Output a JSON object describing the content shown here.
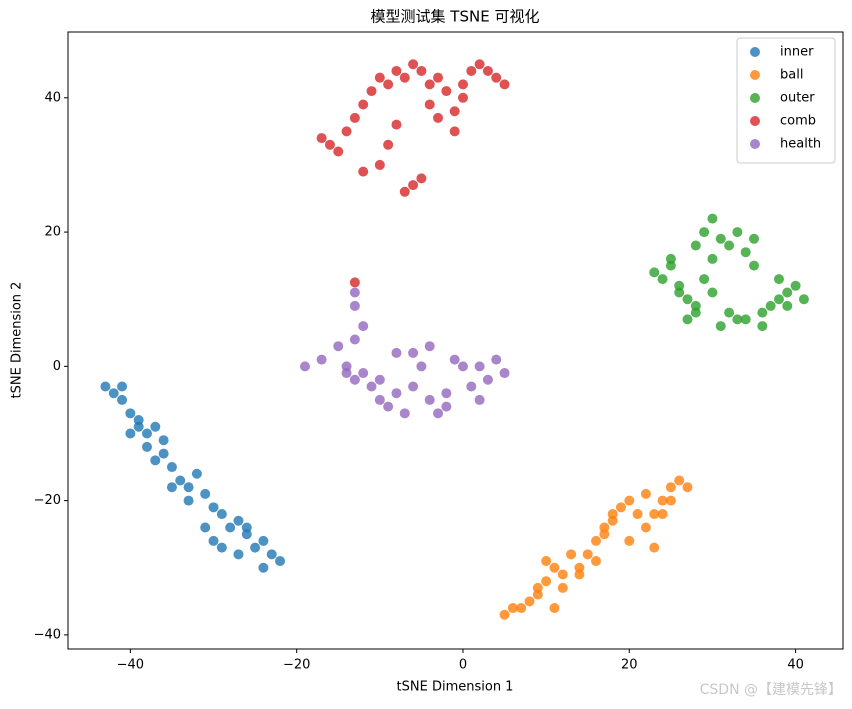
{
  "chart_data": {
    "type": "scatter",
    "title": "模型测试集 TSNE 可视化",
    "x_label": "tSNE Dimension 1",
    "y_label": "tSNE Dimension 2",
    "watermark": "CSDN @【建模先锋】",
    "xlim": [
      -47.5,
      45.7
    ],
    "ylim": [
      -42.1,
      49.8
    ],
    "xticks": [
      {
        "value": -40,
        "label": "−40"
      },
      {
        "value": -20,
        "label": "−20"
      },
      0,
      20,
      40
    ],
    "yticks": [
      {
        "value": -40,
        "label": "−40"
      },
      {
        "value": -20,
        "label": "−20"
      },
      0,
      20,
      40
    ],
    "legend": "upper right",
    "series": [
      {
        "name": "inner",
        "color": "#1f77b4",
        "x": [
          -43,
          -42,
          -41,
          -40,
          -41,
          -39,
          -38,
          -37,
          -38,
          -36,
          -35,
          -36,
          -34,
          -33,
          -32,
          -33,
          -31,
          -30,
          -31,
          -29,
          -28,
          -29,
          -27,
          -26,
          -25,
          -26,
          -24,
          -23,
          -22,
          -24,
          -27,
          -30,
          -35,
          -39,
          -40,
          -37
        ],
        "y": [
          -3,
          -4,
          -5,
          -7,
          -3,
          -9,
          -10,
          -9,
          -12,
          -13,
          -15,
          -11,
          -17,
          -18,
          -16,
          -20,
          -19,
          -21,
          -24,
          -22,
          -24,
          -27,
          -23,
          -25,
          -27,
          -24,
          -26,
          -28,
          -29,
          -30,
          -28,
          -26,
          -18,
          -8,
          -10,
          -14
        ]
      },
      {
        "name": "ball",
        "color": "#ff7f0e",
        "x": [
          5,
          6,
          7,
          8,
          9,
          10,
          11,
          12,
          9,
          10,
          13,
          14,
          15,
          16,
          17,
          18,
          19,
          20,
          17,
          16,
          21,
          22,
          23,
          24,
          25,
          26,
          27,
          24,
          23,
          25,
          12,
          14,
          20,
          22,
          18,
          11
        ],
        "y": [
          -37,
          -36,
          -36,
          -35,
          -34,
          -32,
          -30,
          -31,
          -33,
          -29,
          -28,
          -30,
          -28,
          -26,
          -25,
          -23,
          -21,
          -20,
          -24,
          -29,
          -22,
          -24,
          -22,
          -20,
          -18,
          -17,
          -18,
          -22,
          -27,
          -20,
          -33,
          -31,
          -26,
          -19,
          -22,
          -36
        ]
      },
      {
        "name": "outer",
        "color": "#2ca02c",
        "x": [
          23,
          24,
          25,
          26,
          27,
          28,
          29,
          30,
          31,
          32,
          33,
          34,
          35,
          30,
          29,
          28,
          27,
          26,
          31,
          33,
          36,
          37,
          38,
          39,
          40,
          41,
          38,
          36,
          34,
          32,
          30,
          28,
          25,
          39,
          35
        ],
        "y": [
          14,
          13,
          15,
          12,
          10,
          8,
          20,
          22,
          19,
          18,
          20,
          17,
          15,
          16,
          13,
          9,
          7,
          11,
          6,
          7,
          8,
          9,
          10,
          11,
          12,
          10,
          13,
          6,
          7,
          8,
          11,
          18,
          16,
          9,
          19
        ]
      },
      {
        "name": "comb",
        "color": "#d62728",
        "x": [
          -17,
          -16,
          -15,
          -14,
          -13,
          -12,
          -11,
          -10,
          -9,
          -8,
          -7,
          -6,
          -5,
          -4,
          -3,
          -2,
          -1,
          0,
          1,
          2,
          3,
          4,
          5,
          -6,
          -7,
          -5,
          -10,
          -12,
          -9,
          -3,
          -1,
          -13,
          -8,
          -4,
          0
        ],
        "y": [
          34,
          33,
          32,
          35,
          37,
          39,
          41,
          43,
          42,
          44,
          43,
          45,
          44,
          42,
          43,
          41,
          38,
          40,
          44,
          45,
          44,
          43,
          42,
          27,
          26,
          28,
          30,
          29,
          33,
          37,
          35,
          12.5,
          36,
          39,
          42
        ]
      },
      {
        "name": "health",
        "color": "#9467bd",
        "x": [
          -19,
          -17,
          -15,
          -14,
          -13,
          -14,
          -13,
          -12,
          -11,
          -13,
          -10,
          -9,
          -8,
          -7,
          -6,
          -5,
          -4,
          -3,
          -2,
          -1,
          0,
          1,
          2,
          3,
          4,
          5,
          -8,
          -4,
          -2,
          -12,
          -10,
          -6,
          2,
          -13
        ],
        "y": [
          0,
          1,
          3,
          0,
          -2,
          -1,
          4,
          6,
          -3,
          9,
          -5,
          -6,
          -4,
          -7,
          2,
          0,
          -5,
          -7,
          -4,
          1,
          0,
          -3,
          -5,
          -2,
          1,
          -1,
          2,
          3,
          -6,
          -1,
          -2,
          -3,
          0,
          11
        ]
      }
    ]
  }
}
